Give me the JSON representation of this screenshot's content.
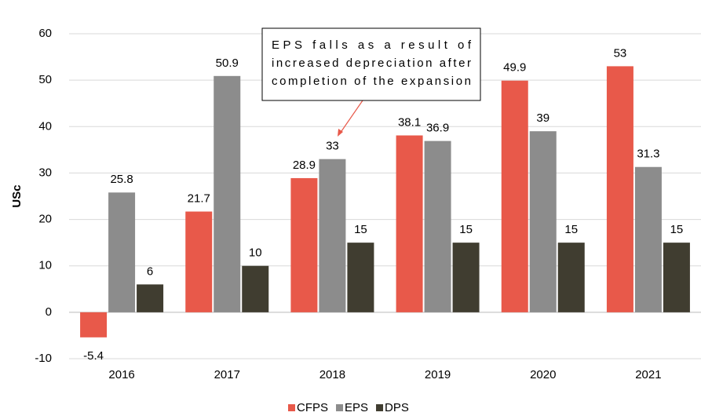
{
  "chart_data": {
    "type": "bar",
    "categories": [
      "2016",
      "2017",
      "2018",
      "2019",
      "2020",
      "2021"
    ],
    "series": [
      {
        "name": "CFPS",
        "color": "#e8594a",
        "values": [
          -5.4,
          21.7,
          28.9,
          38.1,
          49.9,
          53
        ]
      },
      {
        "name": "EPS",
        "color": "#8c8c8c",
        "values": [
          25.8,
          50.9,
          33,
          36.9,
          39,
          31.3
        ]
      },
      {
        "name": "DPS",
        "color": "#403d30",
        "values": [
          6,
          10,
          15,
          15,
          15,
          15
        ]
      }
    ],
    "ylabel": "USc",
    "ylim": [
      -10,
      60
    ],
    "yticks": [
      -10,
      0,
      10,
      20,
      30,
      40,
      50,
      60
    ],
    "grid": true,
    "legend": "bottom",
    "annotation": [
      "EPS falls as a result of",
      "increased depreciation after",
      "completion of the expansion"
    ]
  }
}
